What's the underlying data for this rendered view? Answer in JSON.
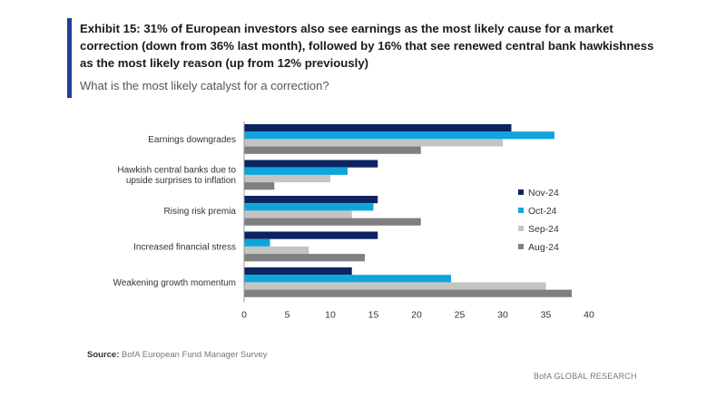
{
  "header": {
    "title": "Exhibit 15: 31% of European investors also see earnings as the most likely cause for a market correction (down from 36% last month), followed by 16% that see renewed central bank hawkishness as the most likely reason (up from 12% previously)",
    "subtitle": "What is the most likely catalyst for a correction?",
    "accent_color": "#1f3f99"
  },
  "footer": {
    "source_label": "Source:",
    "source_text": "BofA European Fund Manager Survey",
    "brand": "BofA GLOBAL RESEARCH"
  },
  "chart_data": {
    "type": "bar",
    "orientation": "horizontal",
    "categories": [
      [
        "Earnings downgrades"
      ],
      [
        "Hawkish central banks due to",
        "upside surprises to inflation"
      ],
      [
        "Rising risk premia"
      ],
      [
        "Increased financial stress"
      ],
      [
        "Weakening growth momentum"
      ]
    ],
    "series": [
      {
        "name": "Nov-24",
        "color": "#0c2461",
        "values": [
          31,
          15.5,
          15.5,
          15.5,
          12.5
        ]
      },
      {
        "name": "Oct-24",
        "color": "#0ea5dd",
        "values": [
          36,
          12,
          15,
          3,
          24
        ]
      },
      {
        "name": "Sep-24",
        "color": "#c4c4c4",
        "values": [
          30,
          10,
          12.5,
          7.5,
          35
        ]
      },
      {
        "name": "Aug-24",
        "color": "#7f7f7f",
        "values": [
          20.5,
          3.5,
          20.5,
          14,
          38
        ]
      }
    ],
    "xlim": [
      0,
      40
    ],
    "xticks": [
      "0",
      "5",
      "10",
      "15",
      "20",
      "25",
      "30",
      "35",
      "40"
    ],
    "grid": false,
    "legend_position": "right"
  }
}
